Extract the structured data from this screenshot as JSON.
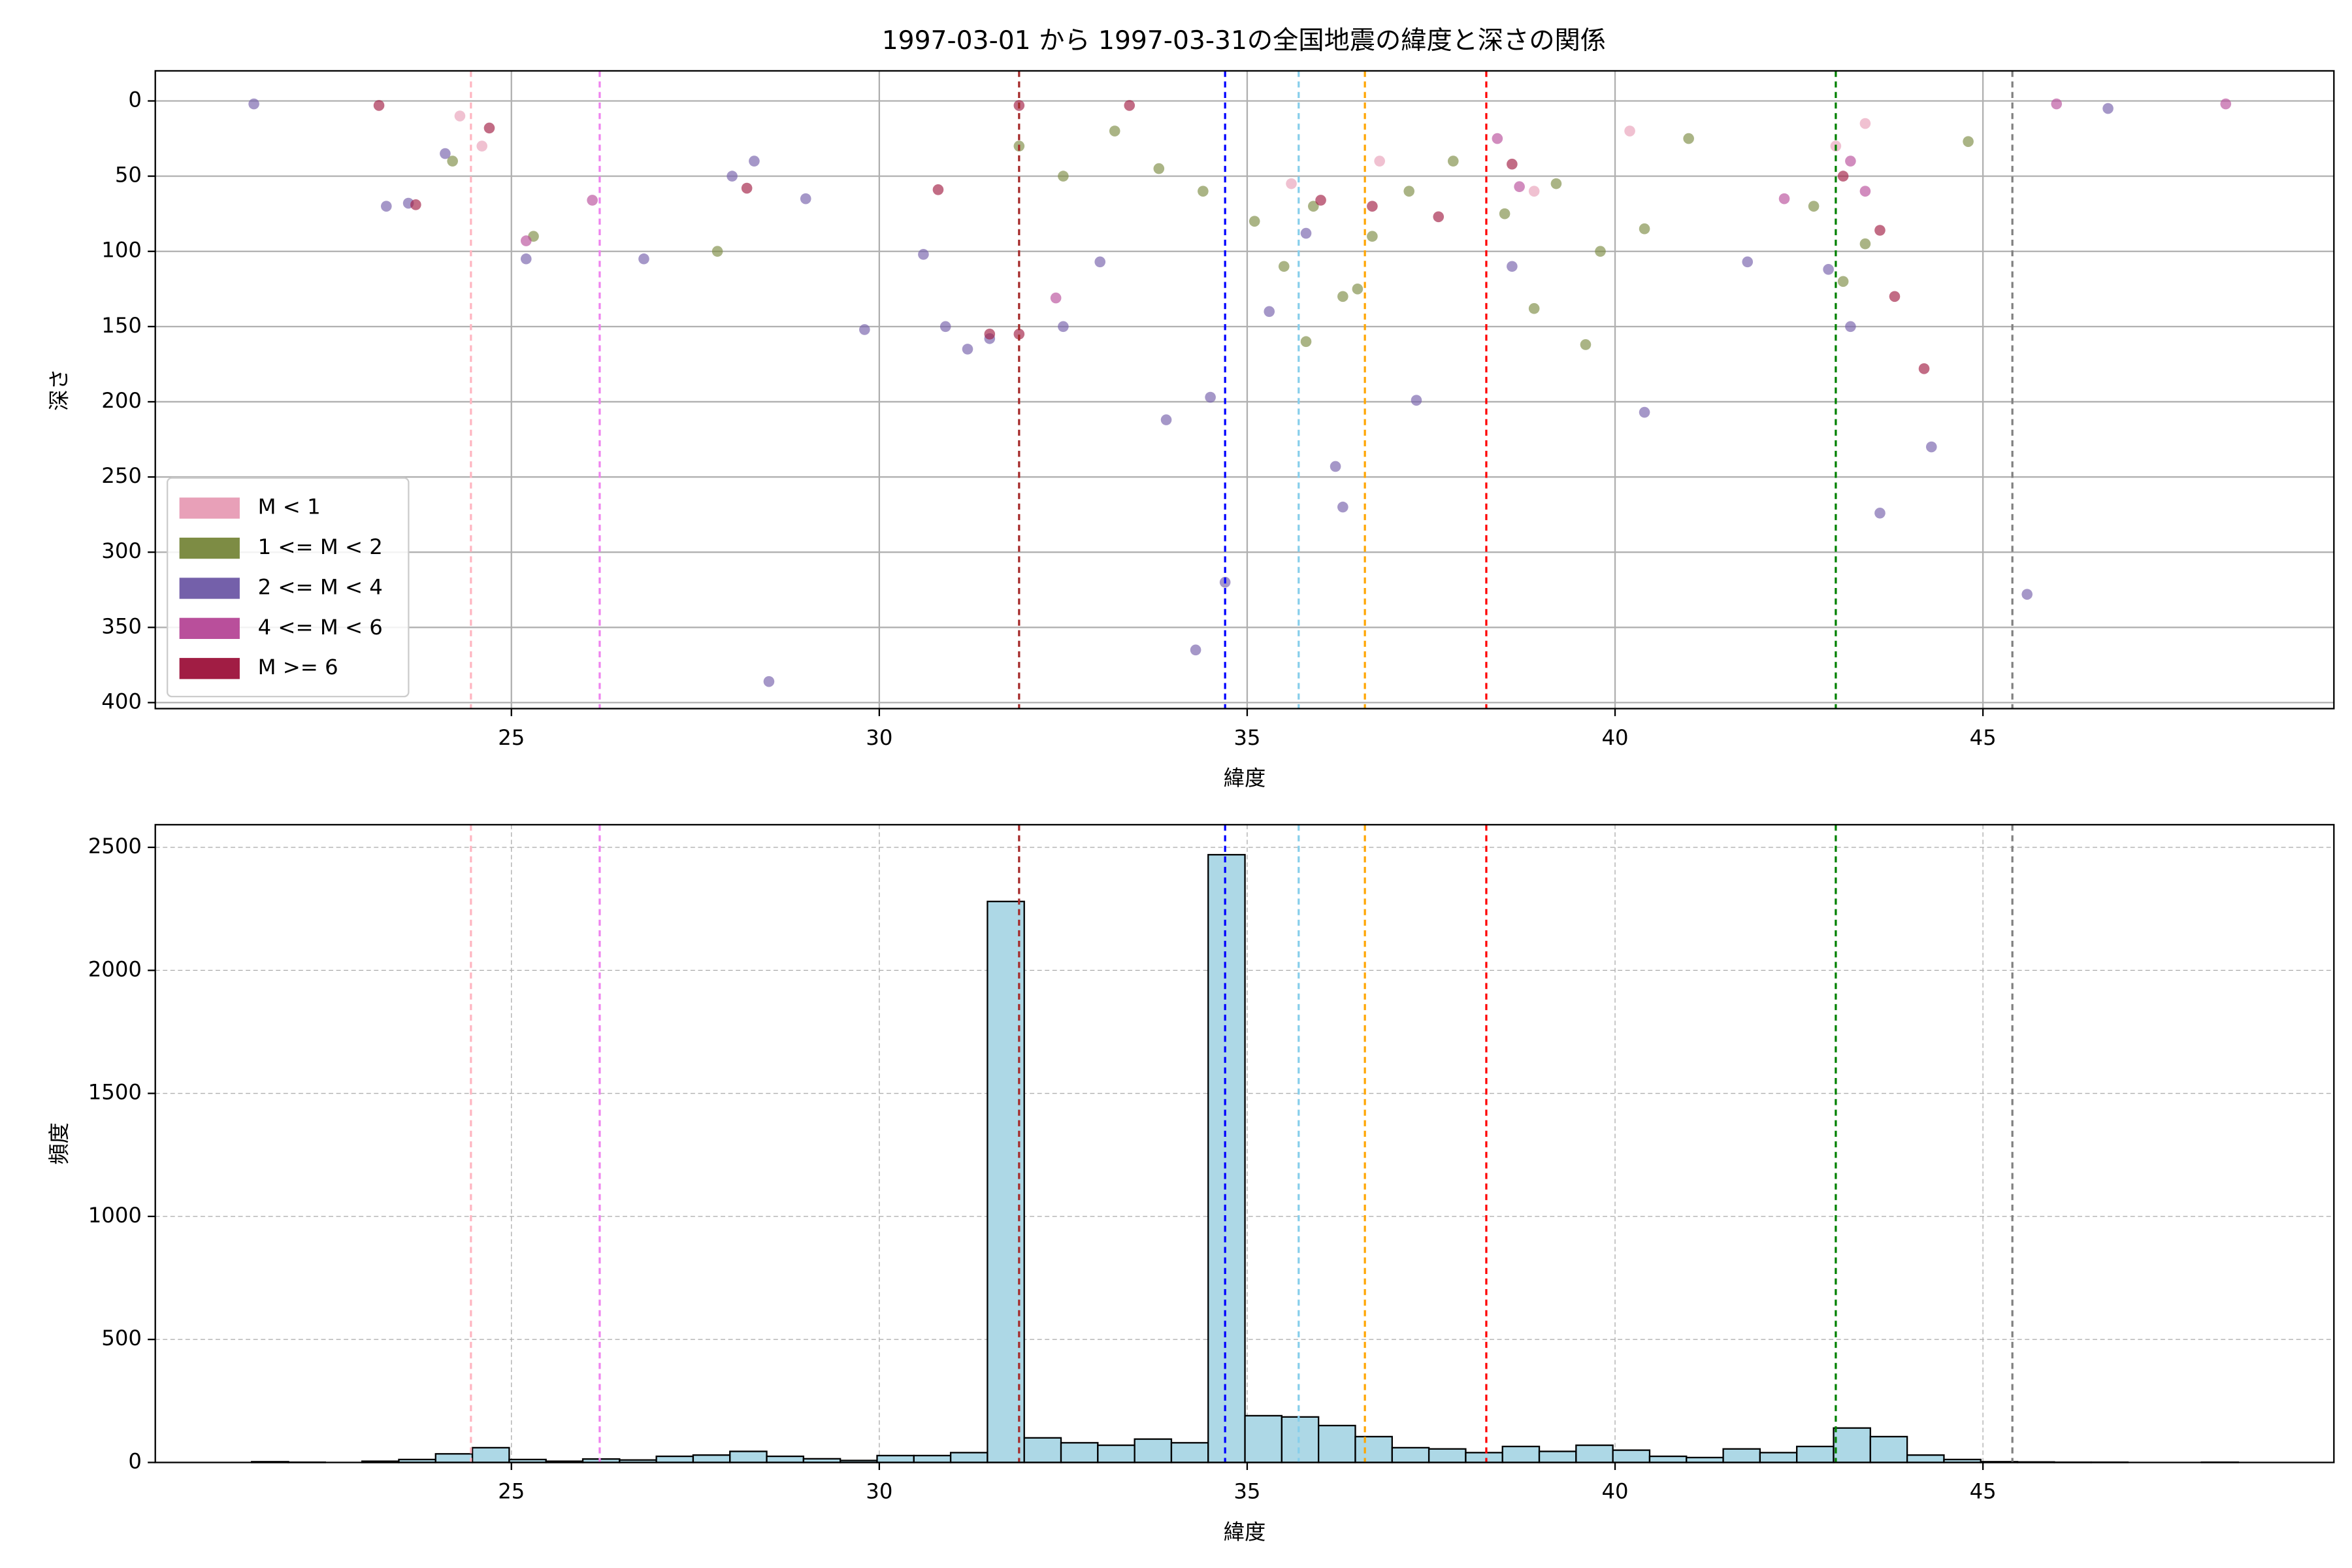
{
  "chart_data": [
    {
      "type": "scatter",
      "title": "1997-03-01 から 1997-03-31の全国地震の緯度と深さの関係",
      "x_label": "緯度",
      "y_label": "深さ",
      "xlim": [
        20.16,
        49.77
      ],
      "xticks": [
        25,
        30,
        35,
        40,
        45
      ],
      "ylim": [
        -20,
        404
      ],
      "yticks": [
        0,
        50,
        100,
        150,
        200,
        250,
        300,
        350,
        400
      ],
      "invert_y": true,
      "grid": true,
      "legend": "lower left",
      "reference_lines": [
        {
          "x": 24.45,
          "color": "#ffb6c1"
        },
        {
          "x": 26.2,
          "color": "#ee82ee"
        },
        {
          "x": 31.9,
          "color": "#a52a2a"
        },
        {
          "x": 34.7,
          "color": "#0000ff"
        },
        {
          "x": 35.7,
          "color": "#87ceeb"
        },
        {
          "x": 36.6,
          "color": "#ffa500"
        },
        {
          "x": 38.25,
          "color": "#ff0000"
        },
        {
          "x": 43.0,
          "color": "#008000"
        },
        {
          "x": 45.4,
          "color": "#808080"
        }
      ],
      "series": [
        {
          "name": "M < 1",
          "color": "#e8a0b8",
          "x": [
            24.3,
            36.8,
            38.9,
            43.4,
            43.0,
            35.6,
            40.2,
            24.6
          ],
          "y": [
            10,
            40,
            60,
            15,
            30,
            55,
            20,
            30
          ]
        },
        {
          "name": "1 <= M < 2",
          "color": "#7d8c44",
          "x": [
            31.9,
            32.5,
            33.2,
            33.8,
            34.4,
            35.1,
            35.5,
            35.9,
            36.3,
            36.7,
            37.2,
            37.8,
            38.5,
            39.2,
            39.8,
            40.4,
            41.0,
            42.7,
            43.1,
            43.4,
            24.2,
            25.3,
            27.8,
            44.8,
            35.8,
            36.5,
            39.6,
            38.9
          ],
          "y": [
            30,
            50,
            20,
            45,
            60,
            80,
            110,
            70,
            130,
            90,
            60,
            40,
            75,
            55,
            100,
            85,
            25,
            70,
            120,
            95,
            40,
            90,
            100,
            27,
            160,
            125,
            162,
            138
          ]
        },
        {
          "name": "2 <= M < 4",
          "color": "#7460aa",
          "x": [
            21.5,
            23.3,
            23.6,
            24.1,
            25.2,
            26.8,
            28.0,
            28.3,
            28.5,
            29.0,
            29.8,
            30.6,
            30.9,
            31.2,
            31.5,
            32.5,
            33.9,
            34.3,
            34.5,
            34.7,
            35.3,
            36.2,
            36.3,
            37.3,
            38.6,
            40.4,
            41.8,
            42.9,
            43.2,
            43.6,
            44.3,
            45.6,
            46.7,
            33.0,
            35.8
          ],
          "y": [
            2,
            70,
            68,
            35,
            105,
            105,
            50,
            40,
            386,
            65,
            152,
            102,
            150,
            165,
            158,
            150,
            212,
            365,
            197,
            320,
            140,
            243,
            270,
            199,
            110,
            207,
            107,
            112,
            150,
            274,
            230,
            328,
            5,
            107,
            88
          ]
        },
        {
          "name": "4 <= M < 6",
          "color": "#b94f9b",
          "x": [
            26.1,
            25.2,
            32.4,
            38.7,
            42.3,
            43.2,
            46.0,
            48.3,
            43.4,
            38.4
          ],
          "y": [
            66,
            93,
            131,
            57,
            65,
            40,
            2,
            2,
            60,
            25
          ]
        },
        {
          "name": "M >= 6",
          "color": "#a11d44",
          "x": [
            23.2,
            23.7,
            24.7,
            28.2,
            30.8,
            31.9,
            31.9,
            36.0,
            36.7,
            37.6,
            38.6,
            43.1,
            43.6,
            43.8,
            44.2,
            31.5,
            33.4
          ],
          "y": [
            3,
            69,
            18,
            58,
            59,
            155,
            3,
            66,
            70,
            77,
            42,
            50,
            86,
            130,
            178,
            155,
            3
          ]
        }
      ]
    },
    {
      "type": "histogram",
      "x_label": "緯度",
      "y_label": "頻度",
      "xlim": [
        20.16,
        49.77
      ],
      "xticks": [
        25,
        30,
        35,
        40,
        45
      ],
      "ylim": [
        0,
        2592
      ],
      "yticks": [
        0,
        500,
        1000,
        1500,
        2000,
        2500
      ],
      "grid": true,
      "grid_style": "dashed",
      "color": "#add8e6",
      "edge_color": "#000000",
      "reference_lines": [
        {
          "x": 24.45,
          "color": "#ffb6c1"
        },
        {
          "x": 26.2,
          "color": "#ee82ee"
        },
        {
          "x": 31.9,
          "color": "#a52a2a"
        },
        {
          "x": 34.7,
          "color": "#0000ff"
        },
        {
          "x": 35.7,
          "color": "#87ceeb"
        },
        {
          "x": 36.6,
          "color": "#ffa500"
        },
        {
          "x": 38.25,
          "color": "#ff0000"
        },
        {
          "x": 43.0,
          "color": "#008000"
        },
        {
          "x": 45.4,
          "color": "#808080"
        }
      ],
      "bins": [
        21.47,
        21.97,
        22.47,
        22.97,
        23.47,
        23.97,
        24.47,
        24.97,
        25.47,
        25.97,
        26.47,
        26.97,
        27.47,
        27.97,
        28.47,
        28.97,
        29.47,
        29.97,
        30.47,
        30.97,
        31.47,
        31.97,
        32.47,
        32.97,
        33.47,
        33.97,
        34.47,
        34.97,
        35.47,
        35.97,
        36.47,
        36.97,
        37.47,
        37.97,
        38.47,
        38.97,
        39.47,
        39.97,
        40.47,
        40.97,
        41.47,
        41.97,
        42.47,
        42.97,
        43.47,
        43.97,
        44.47,
        44.97,
        45.47,
        45.97,
        46.47,
        46.97,
        47.47,
        47.97,
        48.47
      ],
      "values": [
        3,
        1,
        0,
        5,
        12,
        35,
        60,
        12,
        5,
        14,
        10,
        25,
        30,
        45,
        25,
        15,
        8,
        28,
        28,
        40,
        2280,
        100,
        80,
        70,
        95,
        80,
        2470,
        190,
        185,
        150,
        105,
        60,
        55,
        40,
        65,
        45,
        70,
        50,
        25,
        20,
        55,
        40,
        65,
        140,
        105,
        30,
        12,
        3,
        2,
        1,
        1,
        0,
        0,
        1
      ]
    }
  ]
}
